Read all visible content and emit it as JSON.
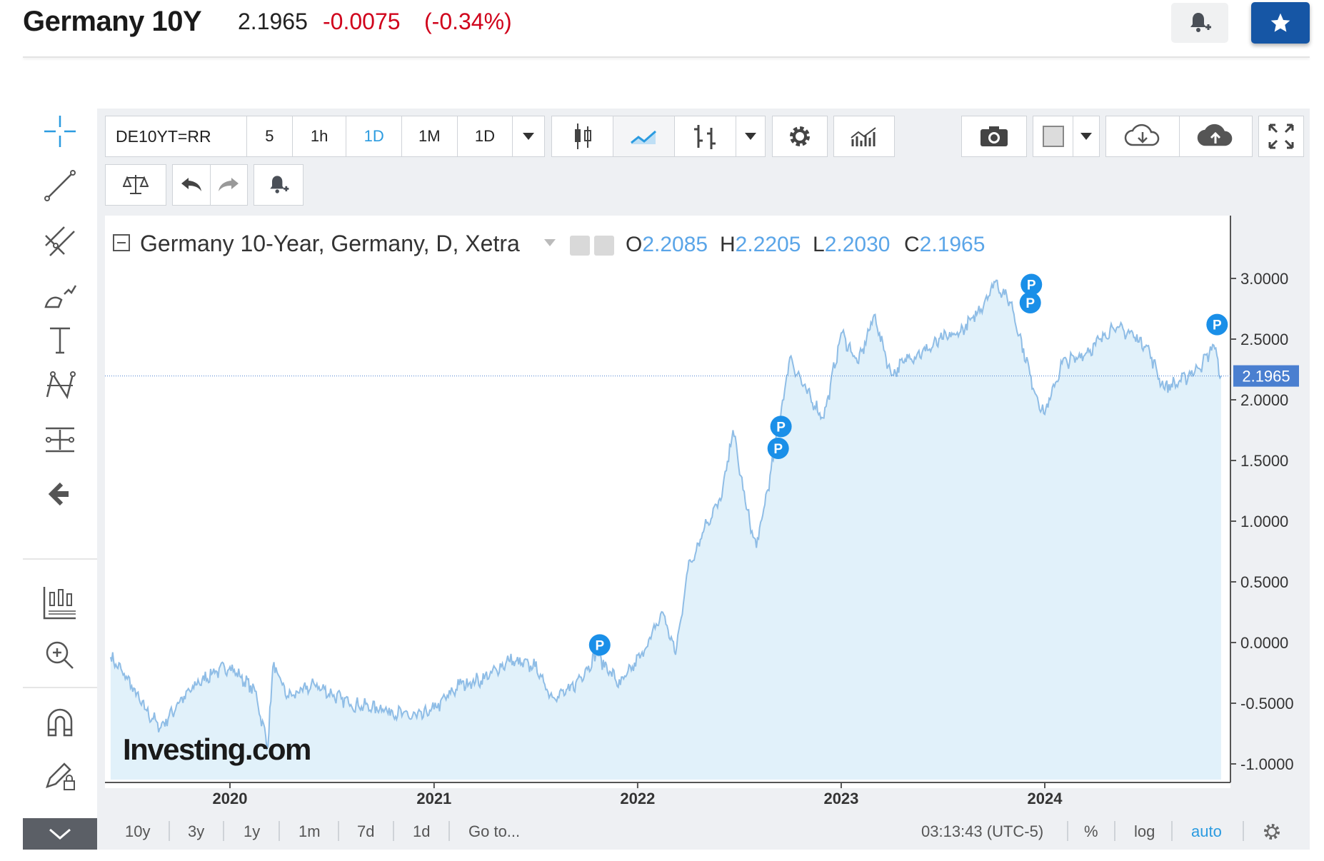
{
  "header": {
    "title": "Germany 10Y",
    "price": "2.1965",
    "change": "-0.0075",
    "change_pct": "(-0.34%)",
    "negative_color": "#d0021b",
    "accent_color": "#1656a5"
  },
  "toolbar": {
    "symbol": "DE10YT=RR",
    "intervals": [
      "5",
      "1h",
      "1D",
      "1M",
      "1D"
    ],
    "active_interval": "1D"
  },
  "legend": {
    "title": "Germany 10-Year, Germany, D, Xetra",
    "o_label": "O",
    "o_value": "2.2085",
    "h_label": "H",
    "h_value": "2.2205",
    "l_label": "L",
    "l_value": "2.2030",
    "c_label": "C",
    "c_value": "2.1965"
  },
  "watermark": "Investing.com",
  "footer": {
    "ranges": [
      "10y",
      "3y",
      "1y",
      "1m",
      "7d",
      "1d",
      "Go to..."
    ],
    "time": "03:13:43 (UTC-5)",
    "percent": "%",
    "log": "log",
    "auto": "auto"
  },
  "chart_data": {
    "type": "area",
    "title": "Germany 10-Year, Germany, D, Xetra",
    "xlabel": "",
    "ylabel": "",
    "x_ticks": [
      "2020",
      "2021",
      "2022",
      "2023",
      "2024"
    ],
    "y_ticks": [
      "3.0000",
      "2.5000",
      "2.0000",
      "1.5000",
      "1.0000",
      "0.5000",
      "0.0000",
      "-0.5000",
      "-1.0000"
    ],
    "ylim": [
      -1.1,
      3.0
    ],
    "last_value_label": "2.1965",
    "last_value": 2.1965,
    "series": [
      {
        "values_by_date": [
          [
            "2019-06-01",
            -0.12
          ],
          [
            "2019-07-01",
            -0.3
          ],
          [
            "2019-08-01",
            -0.55
          ],
          [
            "2019-08-30",
            -0.7
          ],
          [
            "2019-10-01",
            -0.5
          ],
          [
            "2019-11-01",
            -0.35
          ],
          [
            "2019-12-01",
            -0.25
          ],
          [
            "2020-01-01",
            -0.2
          ],
          [
            "2020-02-15",
            -0.4
          ],
          [
            "2020-03-09",
            -0.86
          ],
          [
            "2020-03-18",
            -0.2
          ],
          [
            "2020-04-15",
            -0.45
          ],
          [
            "2020-06-01",
            -0.35
          ],
          [
            "2020-08-01",
            -0.5
          ],
          [
            "2020-10-01",
            -0.55
          ],
          [
            "2020-12-01",
            -0.62
          ],
          [
            "2021-01-01",
            -0.55
          ],
          [
            "2021-02-15",
            -0.35
          ],
          [
            "2021-04-01",
            -0.3
          ],
          [
            "2021-05-15",
            -0.15
          ],
          [
            "2021-07-01",
            -0.2
          ],
          [
            "2021-08-01",
            -0.45
          ],
          [
            "2021-09-01",
            -0.4
          ],
          [
            "2021-10-20",
            -0.1
          ],
          [
            "2021-12-01",
            -0.35
          ],
          [
            "2022-01-15",
            -0.05
          ],
          [
            "2022-02-15",
            0.25
          ],
          [
            "2022-03-10",
            -0.1
          ],
          [
            "2022-04-01",
            0.6
          ],
          [
            "2022-05-01",
            0.95
          ],
          [
            "2022-06-01",
            1.2
          ],
          [
            "2022-06-21",
            1.75
          ],
          [
            "2022-07-15",
            1.1
          ],
          [
            "2022-08-02",
            0.78
          ],
          [
            "2022-09-01",
            1.5
          ],
          [
            "2022-10-01",
            2.35
          ],
          [
            "2022-11-01",
            2.05
          ],
          [
            "2022-12-01",
            1.85
          ],
          [
            "2023-01-01",
            2.55
          ],
          [
            "2023-02-01",
            2.3
          ],
          [
            "2023-03-01",
            2.7
          ],
          [
            "2023-04-01",
            2.2
          ],
          [
            "2023-05-01",
            2.35
          ],
          [
            "2023-06-01",
            2.4
          ],
          [
            "2023-07-01",
            2.5
          ],
          [
            "2023-08-01",
            2.55
          ],
          [
            "2023-09-01",
            2.7
          ],
          [
            "2023-10-04",
            2.97
          ],
          [
            "2023-11-01",
            2.8
          ],
          [
            "2023-12-15",
            2.05
          ],
          [
            "2024-01-01",
            1.88
          ],
          [
            "2024-02-01",
            2.3
          ],
          [
            "2024-03-01",
            2.35
          ],
          [
            "2024-04-01",
            2.45
          ],
          [
            "2024-05-01",
            2.6
          ],
          [
            "2024-06-01",
            2.55
          ],
          [
            "2024-07-01",
            2.45
          ],
          [
            "2024-08-01",
            2.1
          ],
          [
            "2024-09-01",
            2.15
          ],
          [
            "2024-10-10",
            2.3
          ],
          [
            "2024-10-30",
            2.45
          ],
          [
            "2024-11-12",
            2.1965
          ]
        ]
      }
    ],
    "markers": [
      {
        "label": "P",
        "date": "2021-10-25",
        "value": -0.02
      },
      {
        "label": "P",
        "date": "2022-09-10",
        "value": 1.6
      },
      {
        "label": "P",
        "date": "2022-09-15",
        "value": 1.78
      },
      {
        "label": "P",
        "date": "2023-12-06",
        "value": 2.8
      },
      {
        "label": "P",
        "date": "2023-12-08",
        "value": 2.95
      },
      {
        "label": "P",
        "date": "2024-11-05",
        "value": 2.62
      }
    ],
    "line_color": "#8fbde6",
    "fill_color": "#e1f1fa",
    "marker_color": "#1a8fe8",
    "price_line_color": "#4a7fd0"
  }
}
